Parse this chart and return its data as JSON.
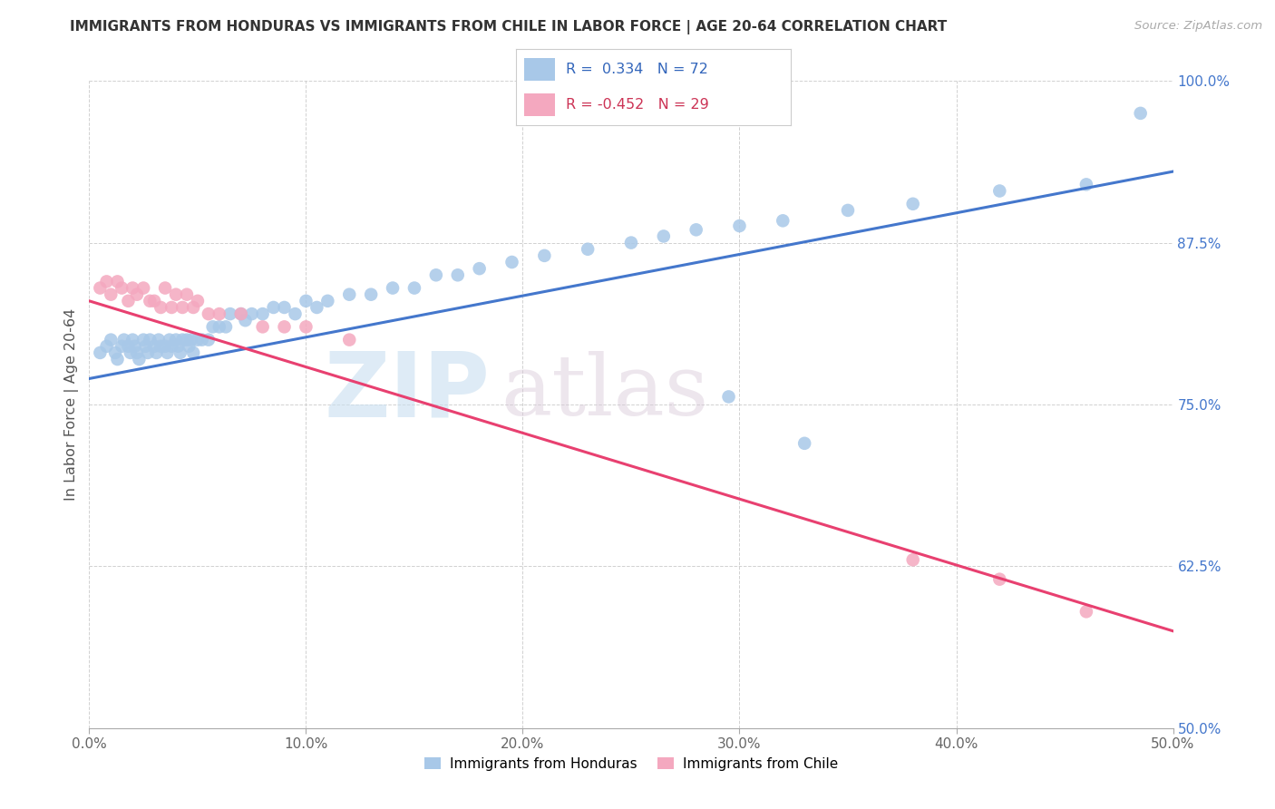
{
  "title": "IMMIGRANTS FROM HONDURAS VS IMMIGRANTS FROM CHILE IN LABOR FORCE | AGE 20-64 CORRELATION CHART",
  "source": "Source: ZipAtlas.com",
  "ylabel": "In Labor Force | Age 20-64",
  "xlim": [
    0.0,
    0.5
  ],
  "ylim": [
    0.5,
    1.0
  ],
  "xticks": [
    0.0,
    0.1,
    0.2,
    0.3,
    0.4,
    0.5
  ],
  "yticks": [
    0.5,
    0.625,
    0.75,
    0.875,
    1.0
  ],
  "ytick_labels": [
    "50.0%",
    "62.5%",
    "75.0%",
    "87.5%",
    "100.0%"
  ],
  "xtick_labels": [
    "0.0%",
    "10.0%",
    "20.0%",
    "30.0%",
    "40.0%",
    "50.0%"
  ],
  "blue_color": "#a8c8e8",
  "pink_color": "#f4a8bf",
  "blue_line_color": "#4477cc",
  "pink_line_color": "#e84070",
  "R_blue": 0.334,
  "N_blue": 72,
  "R_pink": -0.452,
  "N_pink": 29,
  "blue_line_y0": 0.77,
  "blue_line_y1": 0.93,
  "pink_line_y0": 0.83,
  "pink_line_y1": 0.575,
  "blue_x": [
    0.005,
    0.008,
    0.01,
    0.012,
    0.013,
    0.015,
    0.016,
    0.018,
    0.019,
    0.02,
    0.021,
    0.022,
    0.023,
    0.025,
    0.026,
    0.027,
    0.028,
    0.03,
    0.031,
    0.032,
    0.033,
    0.035,
    0.036,
    0.037,
    0.038,
    0.04,
    0.041,
    0.042,
    0.043,
    0.045,
    0.046,
    0.047,
    0.048,
    0.05,
    0.052,
    0.055,
    0.057,
    0.06,
    0.063,
    0.065,
    0.07,
    0.072,
    0.075,
    0.08,
    0.085,
    0.09,
    0.095,
    0.1,
    0.105,
    0.11,
    0.12,
    0.13,
    0.14,
    0.15,
    0.16,
    0.17,
    0.18,
    0.195,
    0.21,
    0.23,
    0.25,
    0.265,
    0.28,
    0.3,
    0.32,
    0.35,
    0.38,
    0.42,
    0.46,
    0.295,
    0.33,
    0.485
  ],
  "blue_y": [
    0.79,
    0.795,
    0.8,
    0.79,
    0.785,
    0.795,
    0.8,
    0.795,
    0.79,
    0.8,
    0.795,
    0.79,
    0.785,
    0.8,
    0.795,
    0.79,
    0.8,
    0.795,
    0.79,
    0.8,
    0.795,
    0.795,
    0.79,
    0.8,
    0.795,
    0.8,
    0.795,
    0.79,
    0.8,
    0.8,
    0.795,
    0.8,
    0.79,
    0.8,
    0.8,
    0.8,
    0.81,
    0.81,
    0.81,
    0.82,
    0.82,
    0.815,
    0.82,
    0.82,
    0.825,
    0.825,
    0.82,
    0.83,
    0.825,
    0.83,
    0.835,
    0.835,
    0.84,
    0.84,
    0.85,
    0.85,
    0.855,
    0.86,
    0.865,
    0.87,
    0.875,
    0.88,
    0.885,
    0.888,
    0.892,
    0.9,
    0.905,
    0.915,
    0.92,
    0.756,
    0.72,
    0.975
  ],
  "pink_x": [
    0.005,
    0.008,
    0.01,
    0.013,
    0.015,
    0.018,
    0.02,
    0.022,
    0.025,
    0.028,
    0.03,
    0.033,
    0.035,
    0.038,
    0.04,
    0.043,
    0.045,
    0.048,
    0.05,
    0.055,
    0.06,
    0.07,
    0.08,
    0.09,
    0.1,
    0.12,
    0.38,
    0.42,
    0.46
  ],
  "pink_y": [
    0.84,
    0.845,
    0.835,
    0.845,
    0.84,
    0.83,
    0.84,
    0.835,
    0.84,
    0.83,
    0.83,
    0.825,
    0.84,
    0.825,
    0.835,
    0.825,
    0.835,
    0.825,
    0.83,
    0.82,
    0.82,
    0.82,
    0.81,
    0.81,
    0.81,
    0.8,
    0.63,
    0.615,
    0.59
  ]
}
